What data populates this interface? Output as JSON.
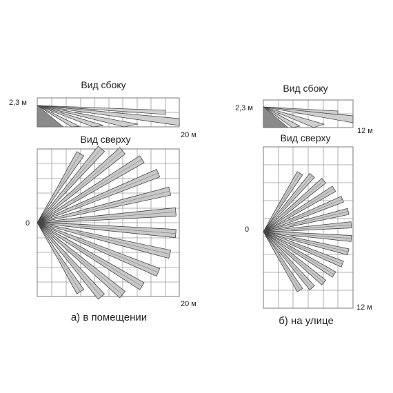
{
  "panels": [
    {
      "id": "indoor",
      "side_view_title": "Вид сбоку",
      "height_label": "2,3 м",
      "side_range_label": "20 м",
      "top_view_title": "Вид сверху",
      "origin_label": "0",
      "top_range_label": "20 м",
      "caption": "а) в помещении",
      "beam_count": 14,
      "side_beam_count": 5
    },
    {
      "id": "outdoor",
      "side_view_title": "Вид сбоку",
      "height_label": "2,3 м",
      "side_range_label": "12 м",
      "top_view_title": "Вид сверху",
      "origin_label": "0",
      "top_range_label": "12 м",
      "caption": "б) на улице",
      "beam_count": 14,
      "side_beam_count": 4
    }
  ],
  "colors": {
    "beam_fill": "#c8c8c8",
    "beam_stroke": "#444444",
    "wedge_fill": "#8a8a8a",
    "grid": "#9a9a9a"
  }
}
